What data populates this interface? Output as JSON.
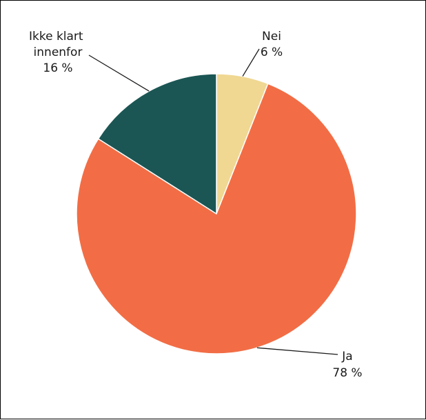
{
  "chart_data": {
    "type": "pie",
    "title": "",
    "slices": [
      {
        "label": "Nei",
        "value": 6,
        "value_label": "6 %",
        "color": "#F0D893"
      },
      {
        "label": "Ja",
        "value": 78,
        "value_label": "78 %",
        "color": "#F26D45"
      },
      {
        "label": "Ikke klart innenfor",
        "value": 16,
        "value_label": "16 %",
        "color": "#1B5654"
      }
    ],
    "start_angle_deg": 0,
    "direction": "clockwise",
    "slice_border_color": "#ffffff",
    "legend": "none",
    "label_style": "outside-with-leader-lines"
  }
}
